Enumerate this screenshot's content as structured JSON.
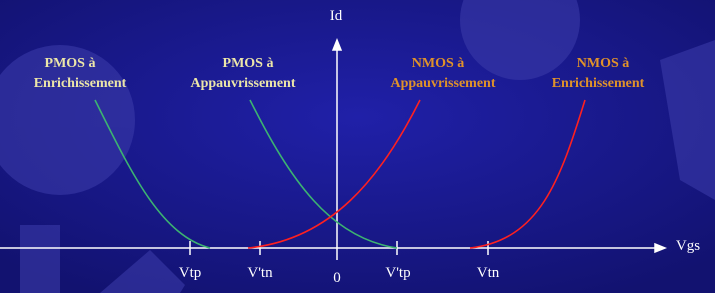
{
  "axes": {
    "y_label": "Id",
    "x_label": "Vgs"
  },
  "ticks": [
    "Vtp",
    "V'tn",
    "0",
    "V'tp",
    "Vtn"
  ],
  "curves": [
    {
      "line1": "PMOS à",
      "line2": "Enrichissement"
    },
    {
      "line1": "PMOS à",
      "line2": "Appauvrissement"
    },
    {
      "line1": "NMOS à",
      "line2": "Appauvrissement"
    },
    {
      "line1": "NMOS à",
      "line2": "Enrichissement"
    }
  ]
}
